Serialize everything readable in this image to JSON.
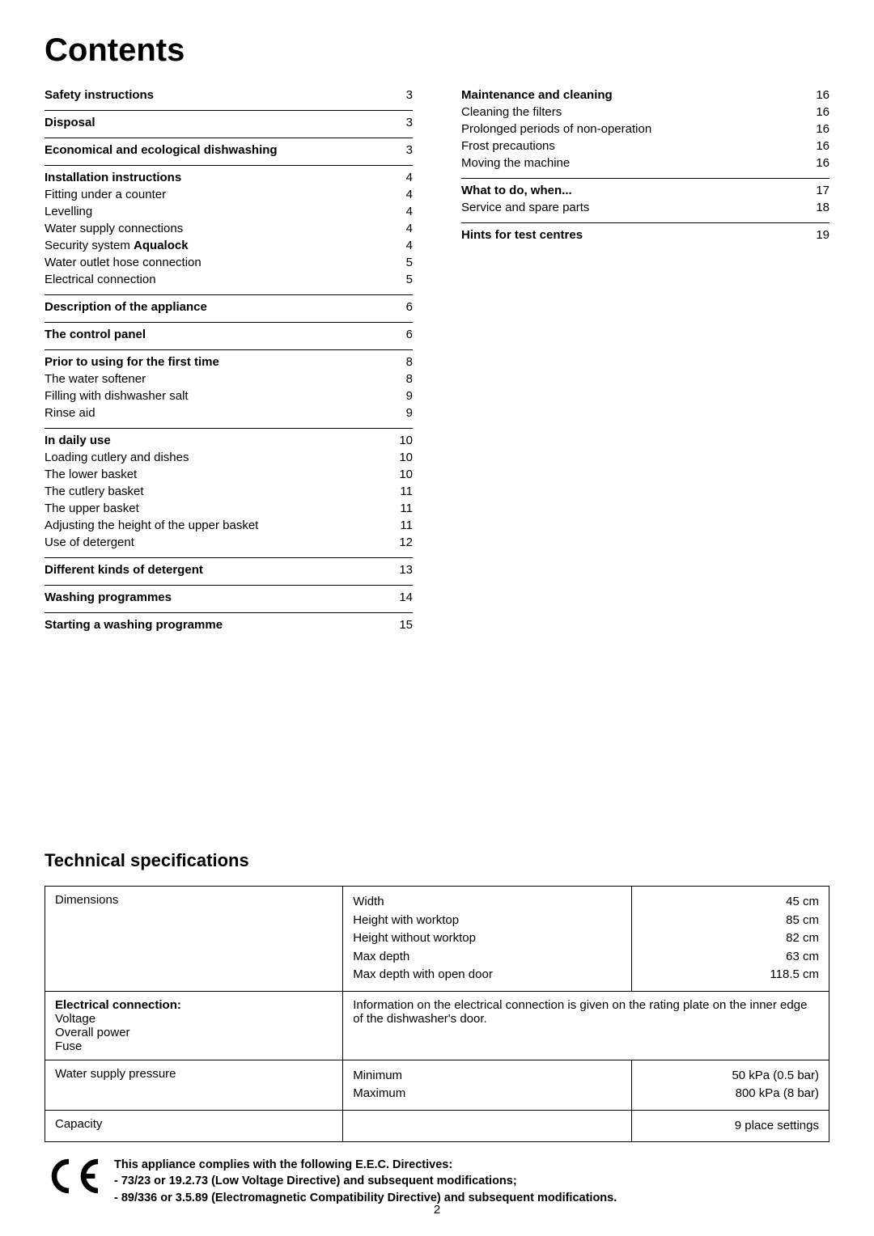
{
  "title": "Contents",
  "page_number": "2",
  "toc": {
    "left": [
      {
        "rows": [
          {
            "label": "Safety instructions",
            "bold": true,
            "page": "3"
          }
        ]
      },
      {
        "rows": [
          {
            "label": "Disposal",
            "bold": true,
            "page": "3"
          }
        ]
      },
      {
        "rows": [
          {
            "label": "Economical and ecological dishwashing",
            "bold": true,
            "page": "3"
          }
        ]
      },
      {
        "rows": [
          {
            "label": "Installation instructions",
            "bold": true,
            "page": "4"
          },
          {
            "label": "Fitting under a counter",
            "page": "4"
          },
          {
            "label": "Levelling",
            "page": "4"
          },
          {
            "label": "Water supply connections",
            "page": "4"
          },
          {
            "label_html": "Security system <b>Aqualock</b>",
            "page": "4"
          },
          {
            "label": "Water outlet hose connection",
            "page": "5"
          },
          {
            "label": "Electrical connection",
            "page": "5"
          }
        ]
      },
      {
        "rows": [
          {
            "label": "Description of the appliance",
            "bold": true,
            "page": "6"
          }
        ]
      },
      {
        "rows": [
          {
            "label": "The control panel",
            "bold": true,
            "page": "6"
          }
        ]
      },
      {
        "rows": [
          {
            "label": "Prior to using for the first time",
            "bold": true,
            "page": "8"
          },
          {
            "label": "The water softener",
            "page": "8"
          },
          {
            "label": "Filling with dishwasher salt",
            "page": "9"
          },
          {
            "label": "Rinse aid",
            "page": "9"
          }
        ]
      },
      {
        "rows": [
          {
            "label": "In daily use",
            "bold": true,
            "page": "10"
          },
          {
            "label": "Loading cutlery and dishes",
            "page": "10"
          },
          {
            "label": "The lower basket",
            "page": "10"
          },
          {
            "label": "The cutlery basket",
            "page": "11"
          },
          {
            "label": "The upper basket",
            "page": "11"
          },
          {
            "label": "Adjusting the height of the upper basket",
            "page": "11"
          },
          {
            "label": "Use of detergent",
            "page": "12"
          }
        ]
      },
      {
        "rows": [
          {
            "label": "Different kinds of detergent",
            "bold": true,
            "page": "13"
          }
        ]
      },
      {
        "rows": [
          {
            "label": "Washing programmes",
            "bold": true,
            "page": "14"
          }
        ]
      },
      {
        "rows": [
          {
            "label": "Starting a washing programme",
            "bold": true,
            "page": "15"
          }
        ]
      }
    ],
    "right": [
      {
        "rows": [
          {
            "label": "Maintenance and cleaning",
            "bold": true,
            "page": "16"
          },
          {
            "label": "Cleaning the filters",
            "page": "16"
          },
          {
            "label": "Prolonged periods of non-operation",
            "page": "16"
          },
          {
            "label": "Frost precautions",
            "page": "16"
          },
          {
            "label": "Moving the machine",
            "page": "16"
          }
        ]
      },
      {
        "rows": [
          {
            "label": "What to do, when...",
            "bold": true,
            "page": "17"
          },
          {
            "label": "Service and spare parts",
            "page": "18"
          }
        ]
      },
      {
        "rows": [
          {
            "label": "Hints for test centres",
            "bold": true,
            "page": "19"
          }
        ]
      }
    ]
  },
  "tech_heading": "Technical specifications",
  "spec_table": {
    "rows": [
      {
        "label_lines": [
          "Dimensions"
        ],
        "sub": [
          {
            "l": "Width",
            "r": "45 cm"
          },
          {
            "l": "Height with worktop",
            "r": "85 cm"
          },
          {
            "l": "Height without worktop",
            "r": "82 cm"
          },
          {
            "l": "Max depth",
            "r": "63 cm"
          },
          {
            "l": "Max depth with open door",
            "r": "118.5 cm"
          }
        ]
      },
      {
        "label_lines": [
          "<b>Electrical connection:</b>",
          "Voltage",
          "Overall power",
          "Fuse"
        ],
        "merged_text": "Information on the electrical connection is given on the rating plate on the inner edge of the dishwasher's door."
      },
      {
        "label_lines": [
          "Water supply pressure"
        ],
        "sub": [
          {
            "l": "Minimum",
            "r": "50 kPa (0.5 bar)"
          },
          {
            "l": "Maximum",
            "r": "800 kPa (8 bar)"
          }
        ]
      },
      {
        "label_lines": [
          "Capacity"
        ],
        "sub": [
          {
            "l": "",
            "r": "9 place settings"
          }
        ]
      }
    ]
  },
  "compliance": {
    "lines": [
      "This appliance complies with the following E.E.C. Directives:",
      "- 73/23 or 19.2.73 (Low Voltage Directive) and subsequent modifications;",
      "- 89/336 or 3.5.89 (Electromagnetic Compatibility Directive) and subsequent modifications."
    ]
  },
  "colors": {
    "text": "#000000",
    "background": "#ffffff",
    "border": "#000000"
  },
  "fonts": {
    "title_size_pt": 30,
    "body_size_pt": 11,
    "heading_size_pt": 17
  }
}
